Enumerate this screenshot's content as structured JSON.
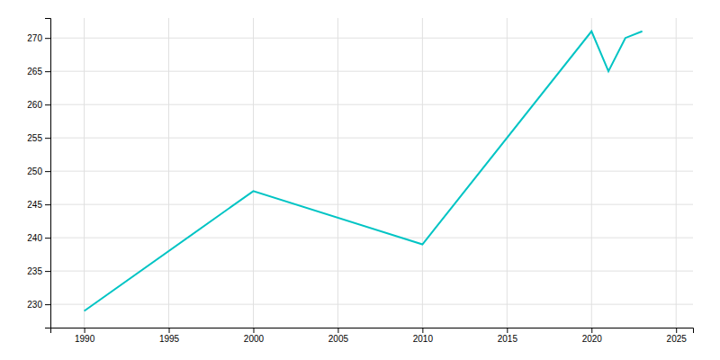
{
  "chart_data": {
    "type": "line",
    "x": [
      1990,
      2000,
      2010,
      2020,
      2021,
      2022,
      2023
    ],
    "values": [
      229,
      247,
      239,
      271,
      265,
      270,
      271
    ],
    "color": "#00C4C4",
    "xlim": [
      1988,
      2026
    ],
    "ylim": [
      226.5,
      273
    ],
    "xticks": [
      1990,
      1995,
      2000,
      2005,
      2010,
      2015,
      2020,
      2025
    ],
    "yticks": [
      230,
      235,
      240,
      245,
      250,
      255,
      260,
      265,
      270
    ],
    "grid": true
  }
}
